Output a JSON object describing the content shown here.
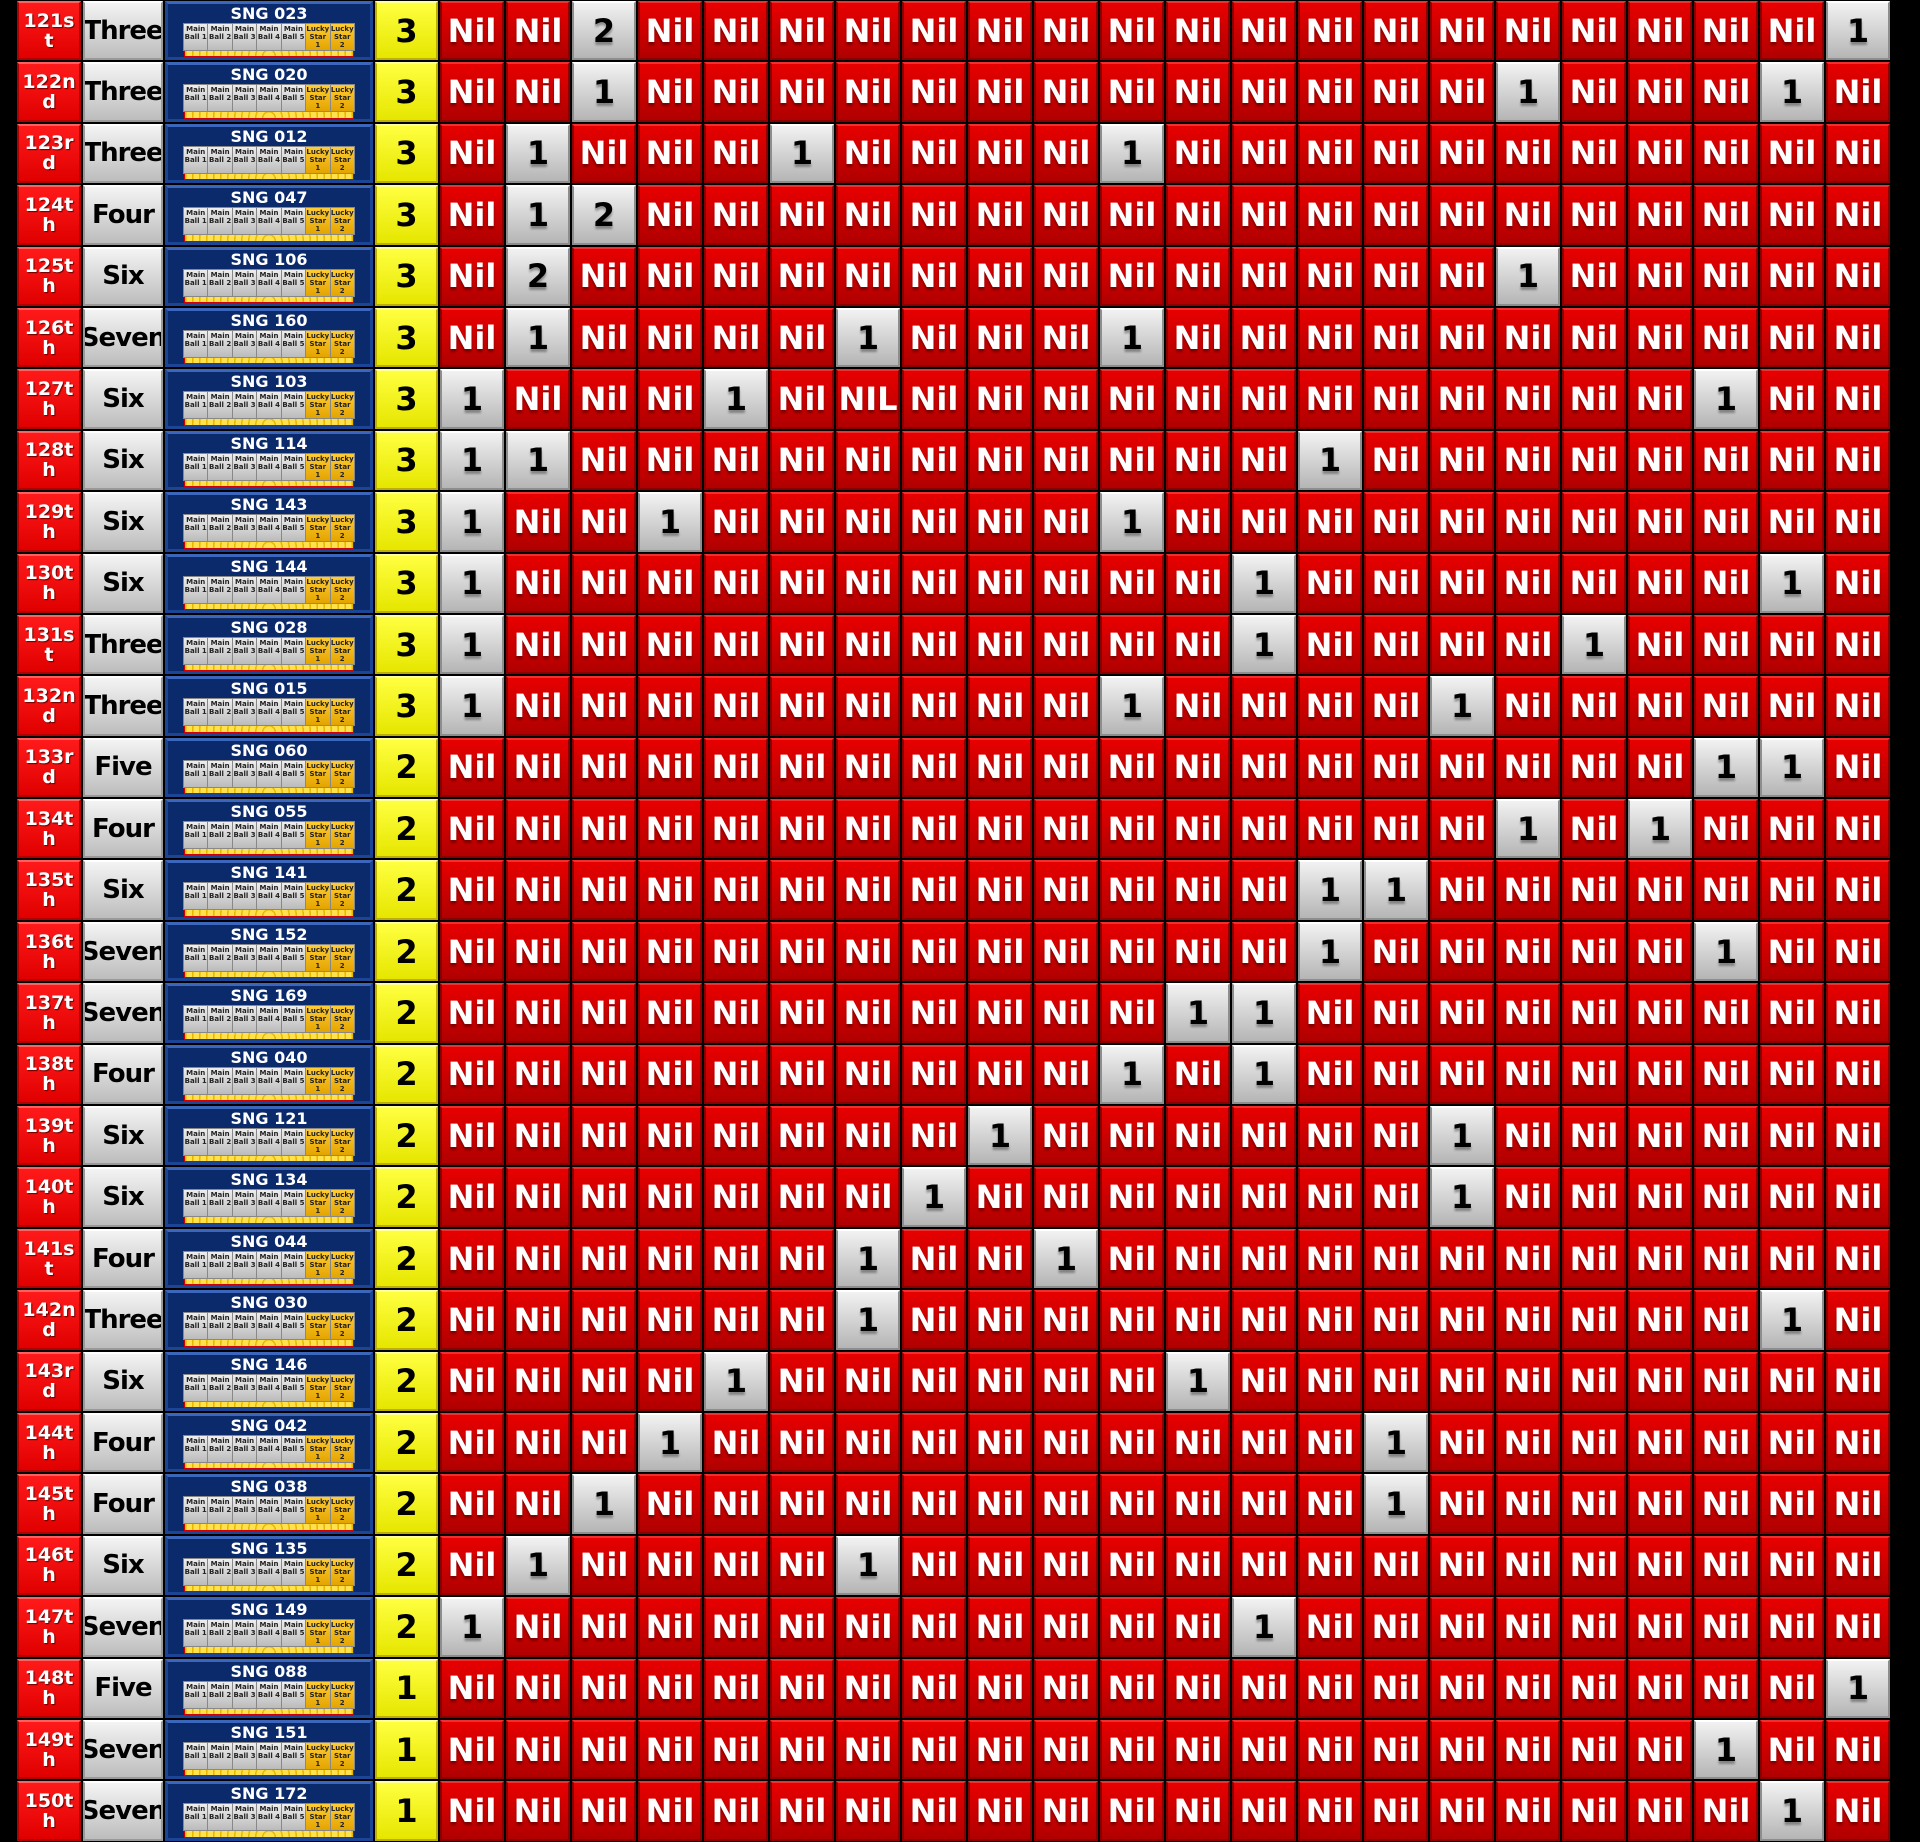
{
  "colors": {
    "nil": "#cc0000",
    "hit": "#d9d9d9",
    "rank": "#ff0000",
    "count": "#ffff00",
    "ticket": "#0b2a6b",
    "star": "#f5b800"
  },
  "ticket_labels": [
    "Main Ball 1",
    "Main Ball 2",
    "Main Ball 3",
    "Main Ball 4",
    "Main Ball 5",
    "Lucky Star 1",
    "Lucky Star 2"
  ],
  "rows": [
    {
      "rank": "121st",
      "word": "Three",
      "ticket": "SNG 023",
      "count": "3",
      "cells": [
        "Nil",
        "Nil",
        "2",
        "Nil",
        "Nil",
        "Nil",
        "Nil",
        "Nil",
        "Nil",
        "Nil",
        "Nil",
        "Nil",
        "Nil",
        "Nil",
        "Nil",
        "Nil",
        "Nil",
        "Nil",
        "Nil",
        "Nil",
        "Nil",
        "1"
      ]
    },
    {
      "rank": "122nd",
      "word": "Three",
      "ticket": "SNG 020",
      "count": "3",
      "cells": [
        "Nil",
        "Nil",
        "1",
        "Nil",
        "Nil",
        "Nil",
        "Nil",
        "Nil",
        "Nil",
        "Nil",
        "Nil",
        "Nil",
        "Nil",
        "Nil",
        "Nil",
        "Nil",
        "1",
        "Nil",
        "Nil",
        "Nil",
        "1",
        "Nil"
      ]
    },
    {
      "rank": "123rd",
      "word": "Three",
      "ticket": "SNG 012",
      "count": "3",
      "cells": [
        "Nil",
        "1",
        "Nil",
        "Nil",
        "Nil",
        "1",
        "Nil",
        "Nil",
        "Nil",
        "Nil",
        "1",
        "Nil",
        "Nil",
        "Nil",
        "Nil",
        "Nil",
        "Nil",
        "Nil",
        "Nil",
        "Nil",
        "Nil",
        "Nil"
      ]
    },
    {
      "rank": "124th",
      "word": "Four",
      "ticket": "SNG 047",
      "count": "3",
      "cells": [
        "Nil",
        "1",
        "2",
        "Nil",
        "Nil",
        "Nil",
        "Nil",
        "Nil",
        "Nil",
        "Nil",
        "Nil",
        "Nil",
        "Nil",
        "Nil",
        "Nil",
        "Nil",
        "Nil",
        "Nil",
        "Nil",
        "Nil",
        "Nil",
        "Nil"
      ]
    },
    {
      "rank": "125th",
      "word": "Six",
      "ticket": "SNG 106",
      "count": "3",
      "cells": [
        "Nil",
        "2",
        "Nil",
        "Nil",
        "Nil",
        "Nil",
        "Nil",
        "Nil",
        "Nil",
        "Nil",
        "Nil",
        "Nil",
        "Nil",
        "Nil",
        "Nil",
        "Nil",
        "1",
        "Nil",
        "Nil",
        "Nil",
        "Nil",
        "Nil"
      ]
    },
    {
      "rank": "126th",
      "word": "Seven",
      "ticket": "SNG 160",
      "count": "3",
      "cells": [
        "Nil",
        "1",
        "Nil",
        "Nil",
        "Nil",
        "Nil",
        "1",
        "Nil",
        "Nil",
        "Nil",
        "1",
        "Nil",
        "Nil",
        "Nil",
        "Nil",
        "Nil",
        "Nil",
        "Nil",
        "Nil",
        "Nil",
        "Nil",
        "Nil"
      ]
    },
    {
      "rank": "127th",
      "word": "Six",
      "ticket": "SNG 103",
      "count": "3",
      "cells": [
        "1",
        "Nil",
        "Nil",
        "Nil",
        "1",
        "Nil",
        "NIL",
        "Nil",
        "Nil",
        "Nil",
        "Nil",
        "Nil",
        "Nil",
        "Nil",
        "Nil",
        "Nil",
        "Nil",
        "Nil",
        "Nil",
        "1",
        "Nil",
        "Nil"
      ]
    },
    {
      "rank": "128th",
      "word": "Six",
      "ticket": "SNG 114",
      "count": "3",
      "cells": [
        "1",
        "1",
        "Nil",
        "Nil",
        "Nil",
        "Nil",
        "Nil",
        "Nil",
        "Nil",
        "Nil",
        "Nil",
        "Nil",
        "Nil",
        "1",
        "Nil",
        "Nil",
        "Nil",
        "Nil",
        "Nil",
        "Nil",
        "Nil",
        "Nil"
      ]
    },
    {
      "rank": "129th",
      "word": "Six",
      "ticket": "SNG 143",
      "count": "3",
      "cells": [
        "1",
        "Nil",
        "Nil",
        "1",
        "Nil",
        "Nil",
        "Nil",
        "Nil",
        "Nil",
        "Nil",
        "1",
        "Nil",
        "Nil",
        "Nil",
        "Nil",
        "Nil",
        "Nil",
        "Nil",
        "Nil",
        "Nil",
        "Nil",
        "Nil"
      ]
    },
    {
      "rank": "130th",
      "word": "Six",
      "ticket": "SNG 144",
      "count": "3",
      "cells": [
        "1",
        "Nil",
        "Nil",
        "Nil",
        "Nil",
        "Nil",
        "Nil",
        "Nil",
        "Nil",
        "Nil",
        "Nil",
        "Nil",
        "1",
        "Nil",
        "Nil",
        "Nil",
        "Nil",
        "Nil",
        "Nil",
        "Nil",
        "1",
        "Nil"
      ]
    },
    {
      "rank": "131st",
      "word": "Three",
      "ticket": "SNG 028",
      "count": "3",
      "cells": [
        "1",
        "Nil",
        "Nil",
        "Nil",
        "Nil",
        "Nil",
        "Nil",
        "Nil",
        "Nil",
        "Nil",
        "Nil",
        "Nil",
        "1",
        "Nil",
        "Nil",
        "Nil",
        "Nil",
        "1",
        "Nil",
        "Nil",
        "Nil",
        "Nil"
      ]
    },
    {
      "rank": "132nd",
      "word": "Three",
      "ticket": "SNG 015",
      "count": "3",
      "cells": [
        "1",
        "Nil",
        "Nil",
        "Nil",
        "Nil",
        "Nil",
        "Nil",
        "Nil",
        "Nil",
        "Nil",
        "1",
        "Nil",
        "Nil",
        "Nil",
        "Nil",
        "1",
        "Nil",
        "Nil",
        "Nil",
        "Nil",
        "Nil",
        "Nil"
      ]
    },
    {
      "rank": "133rd",
      "word": "Five",
      "ticket": "SNG 060",
      "count": "2",
      "cells": [
        "Nil",
        "Nil",
        "Nil",
        "Nil",
        "Nil",
        "Nil",
        "Nil",
        "Nil",
        "Nil",
        "Nil",
        "Nil",
        "Nil",
        "Nil",
        "Nil",
        "Nil",
        "Nil",
        "Nil",
        "Nil",
        "Nil",
        "1",
        "1",
        "Nil"
      ]
    },
    {
      "rank": "134th",
      "word": "Four",
      "ticket": "SNG 055",
      "count": "2",
      "cells": [
        "Nil",
        "Nil",
        "Nil",
        "Nil",
        "Nil",
        "Nil",
        "Nil",
        "Nil",
        "Nil",
        "Nil",
        "Nil",
        "Nil",
        "Nil",
        "Nil",
        "Nil",
        "Nil",
        "1",
        "Nil",
        "1",
        "Nil",
        "Nil",
        "Nil"
      ]
    },
    {
      "rank": "135th",
      "word": "Six",
      "ticket": "SNG 141",
      "count": "2",
      "cells": [
        "Nil",
        "Nil",
        "Nil",
        "Nil",
        "Nil",
        "Nil",
        "Nil",
        "Nil",
        "Nil",
        "Nil",
        "Nil",
        "Nil",
        "Nil",
        "1",
        "1",
        "Nil",
        "Nil",
        "Nil",
        "Nil",
        "Nil",
        "Nil",
        "Nil"
      ]
    },
    {
      "rank": "136th",
      "word": "Seven",
      "ticket": "SNG 152",
      "count": "2",
      "cells": [
        "Nil",
        "Nil",
        "Nil",
        "Nil",
        "Nil",
        "Nil",
        "Nil",
        "Nil",
        "Nil",
        "Nil",
        "Nil",
        "Nil",
        "Nil",
        "1",
        "Nil",
        "Nil",
        "Nil",
        "Nil",
        "Nil",
        "1",
        "Nil",
        "Nil"
      ]
    },
    {
      "rank": "137th",
      "word": "Seven",
      "ticket": "SNG 169",
      "count": "2",
      "cells": [
        "Nil",
        "Nil",
        "Nil",
        "Nil",
        "Nil",
        "Nil",
        "Nil",
        "Nil",
        "Nil",
        "Nil",
        "Nil",
        "1",
        "1",
        "Nil",
        "Nil",
        "Nil",
        "Nil",
        "Nil",
        "Nil",
        "Nil",
        "Nil",
        "Nil"
      ]
    },
    {
      "rank": "138th",
      "word": "Four",
      "ticket": "SNG 040",
      "count": "2",
      "cells": [
        "Nil",
        "Nil",
        "Nil",
        "Nil",
        "Nil",
        "Nil",
        "Nil",
        "Nil",
        "Nil",
        "Nil",
        "1",
        "Nil",
        "1",
        "Nil",
        "Nil",
        "Nil",
        "Nil",
        "Nil",
        "Nil",
        "Nil",
        "Nil",
        "Nil"
      ]
    },
    {
      "rank": "139th",
      "word": "Six",
      "ticket": "SNG 121",
      "count": "2",
      "cells": [
        "Nil",
        "Nil",
        "Nil",
        "Nil",
        "Nil",
        "Nil",
        "Nil",
        "Nil",
        "1",
        "Nil",
        "Nil",
        "Nil",
        "Nil",
        "Nil",
        "Nil",
        "1",
        "Nil",
        "Nil",
        "Nil",
        "Nil",
        "Nil",
        "Nil"
      ]
    },
    {
      "rank": "140th",
      "word": "Six",
      "ticket": "SNG 134",
      "count": "2",
      "cells": [
        "Nil",
        "Nil",
        "Nil",
        "Nil",
        "Nil",
        "Nil",
        "Nil",
        "1",
        "Nil",
        "Nil",
        "Nil",
        "Nil",
        "Nil",
        "Nil",
        "Nil",
        "1",
        "Nil",
        "Nil",
        "Nil",
        "Nil",
        "Nil",
        "Nil"
      ]
    },
    {
      "rank": "141st",
      "word": "Four",
      "ticket": "SNG 044",
      "count": "2",
      "cells": [
        "Nil",
        "Nil",
        "Nil",
        "Nil",
        "Nil",
        "Nil",
        "1",
        "Nil",
        "Nil",
        "1",
        "Nil",
        "Nil",
        "Nil",
        "Nil",
        "Nil",
        "Nil",
        "Nil",
        "Nil",
        "Nil",
        "Nil",
        "Nil",
        "Nil"
      ]
    },
    {
      "rank": "142nd",
      "word": "Three",
      "ticket": "SNG 030",
      "count": "2",
      "cells": [
        "Nil",
        "Nil",
        "Nil",
        "Nil",
        "Nil",
        "Nil",
        "1",
        "Nil",
        "Nil",
        "Nil",
        "Nil",
        "Nil",
        "Nil",
        "Nil",
        "Nil",
        "Nil",
        "Nil",
        "Nil",
        "Nil",
        "Nil",
        "1",
        "Nil"
      ]
    },
    {
      "rank": "143rd",
      "word": "Six",
      "ticket": "SNG 146",
      "count": "2",
      "cells": [
        "Nil",
        "Nil",
        "Nil",
        "Nil",
        "1",
        "Nil",
        "Nil",
        "Nil",
        "Nil",
        "Nil",
        "Nil",
        "1",
        "Nil",
        "Nil",
        "Nil",
        "Nil",
        "Nil",
        "Nil",
        "Nil",
        "Nil",
        "Nil",
        "Nil"
      ]
    },
    {
      "rank": "144th",
      "word": "Four",
      "ticket": "SNG 042",
      "count": "2",
      "cells": [
        "Nil",
        "Nil",
        "Nil",
        "1",
        "Nil",
        "Nil",
        "Nil",
        "Nil",
        "Nil",
        "Nil",
        "Nil",
        "Nil",
        "Nil",
        "Nil",
        "1",
        "Nil",
        "Nil",
        "Nil",
        "Nil",
        "Nil",
        "Nil",
        "Nil"
      ]
    },
    {
      "rank": "145th",
      "word": "Four",
      "ticket": "SNG 038",
      "count": "2",
      "cells": [
        "Nil",
        "Nil",
        "1",
        "Nil",
        "Nil",
        "Nil",
        "Nil",
        "Nil",
        "Nil",
        "Nil",
        "Nil",
        "Nil",
        "Nil",
        "Nil",
        "1",
        "Nil",
        "Nil",
        "Nil",
        "Nil",
        "Nil",
        "Nil",
        "Nil"
      ]
    },
    {
      "rank": "146th",
      "word": "Six",
      "ticket": "SNG 135",
      "count": "2",
      "cells": [
        "Nil",
        "1",
        "Nil",
        "Nil",
        "Nil",
        "Nil",
        "1",
        "Nil",
        "Nil",
        "Nil",
        "Nil",
        "Nil",
        "Nil",
        "Nil",
        "Nil",
        "Nil",
        "Nil",
        "Nil",
        "Nil",
        "Nil",
        "Nil",
        "Nil"
      ]
    },
    {
      "rank": "147th",
      "word": "Seven",
      "ticket": "SNG 149",
      "count": "2",
      "cells": [
        "1",
        "Nil",
        "Nil",
        "Nil",
        "Nil",
        "Nil",
        "Nil",
        "Nil",
        "Nil",
        "Nil",
        "Nil",
        "Nil",
        "1",
        "Nil",
        "Nil",
        "Nil",
        "Nil",
        "Nil",
        "Nil",
        "Nil",
        "Nil",
        "Nil"
      ]
    },
    {
      "rank": "148th",
      "word": "Five",
      "ticket": "SNG 088",
      "count": "1",
      "cells": [
        "Nil",
        "Nil",
        "Nil",
        "Nil",
        "Nil",
        "Nil",
        "Nil",
        "Nil",
        "Nil",
        "Nil",
        "Nil",
        "Nil",
        "Nil",
        "Nil",
        "Nil",
        "Nil",
        "Nil",
        "Nil",
        "Nil",
        "Nil",
        "Nil",
        "1"
      ]
    },
    {
      "rank": "149th",
      "word": "Seven",
      "ticket": "SNG 151",
      "count": "1",
      "cells": [
        "Nil",
        "Nil",
        "Nil",
        "Nil",
        "Nil",
        "Nil",
        "Nil",
        "Nil",
        "Nil",
        "Nil",
        "Nil",
        "Nil",
        "Nil",
        "Nil",
        "Nil",
        "Nil",
        "Nil",
        "Nil",
        "Nil",
        "1",
        "Nil",
        "Nil"
      ]
    },
    {
      "rank": "150th",
      "word": "Seven",
      "ticket": "SNG 172",
      "count": "1",
      "cells": [
        "Nil",
        "Nil",
        "Nil",
        "Nil",
        "Nil",
        "Nil",
        "Nil",
        "Nil",
        "Nil",
        "Nil",
        "Nil",
        "Nil",
        "Nil",
        "Nil",
        "Nil",
        "Nil",
        "Nil",
        "Nil",
        "Nil",
        "Nil",
        "1",
        "Nil"
      ]
    }
  ]
}
